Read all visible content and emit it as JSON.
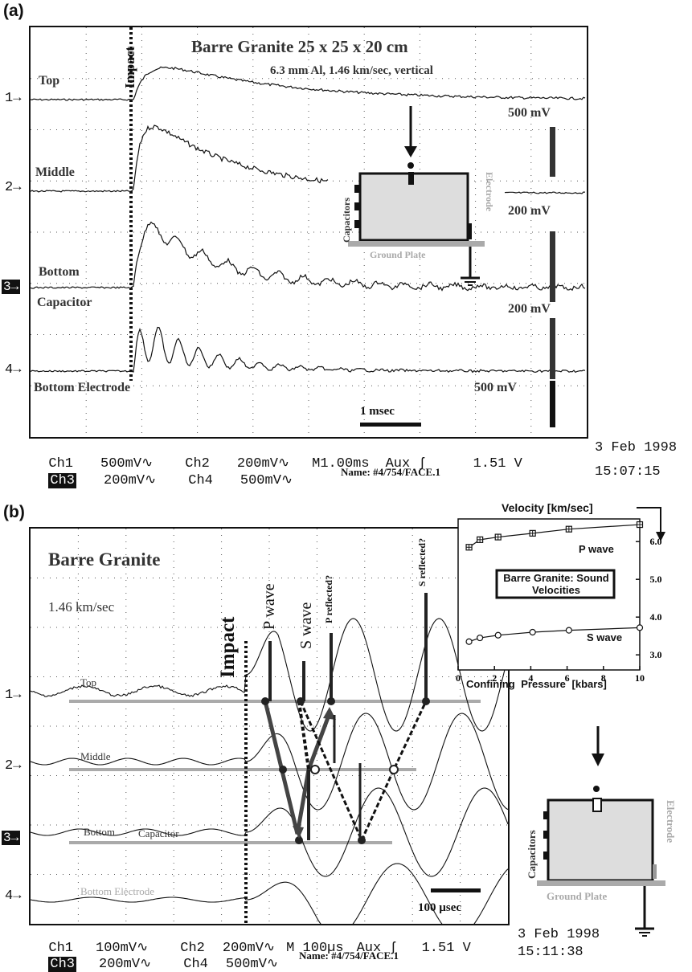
{
  "panel_a": {
    "label": "(a)",
    "title": "Barre Granite 25 x 25 x 20 cm",
    "subtitle": "6.3 mm Al, 1.46 km/sec, vertical",
    "impact_label": "Impact",
    "trace_labels": [
      "Top",
      "Middle",
      "Bottom",
      "Capacitor",
      "Bottom Electrode"
    ],
    "channel_markers": [
      "1",
      "2",
      "3",
      "4"
    ],
    "scales": [
      "500 mV",
      "200 mV",
      "200 mV",
      "500 mV"
    ],
    "time_bar_label": "1 msec",
    "inset": {
      "capacitors": "Capacitors",
      "electrode": "Electrode",
      "ground_plate": "Ground Plate"
    },
    "footer": {
      "row1": [
        "Ch1",
        "500mV∿",
        "Ch2",
        "200mV∿",
        "M1.00ms",
        "Aux ʃ",
        "1.51 V"
      ],
      "row2": [
        "Ch3",
        "200mV∿",
        "Ch4",
        "500mV∿"
      ],
      "name": "Name: #4/754/FACE.1",
      "date": "3 Feb 1998",
      "time": "15:07:15"
    }
  },
  "panel_b": {
    "label": "(b)",
    "title": "Barre Granite",
    "speed": "1.46 km/sec",
    "impact_label": "Impact",
    "trace_labels": [
      "Top",
      "Middle",
      "Bottom",
      "Capacitor",
      "Bottom Electrode"
    ],
    "channel_markers": [
      "1",
      "2",
      "3",
      "4"
    ],
    "wave_labels": [
      "P wave",
      "S wave",
      "P reflected?",
      "S reflected?"
    ],
    "time_bar_label": "100 µsec",
    "inset": {
      "capacitors": "Capacitors",
      "electrode": "Electrode",
      "ground_plate": "Ground Plate"
    },
    "footer": {
      "row1": [
        "Ch1",
        "100mV∿",
        "Ch2",
        "200mV∿",
        "M 100µs",
        "Aux ʃ",
        "1.51 V"
      ],
      "row2": [
        "Ch3",
        "200mV∿",
        "Ch4",
        "500mV∿"
      ],
      "name": "Name: #4/754/FACE.1",
      "date": "3 Feb 1998",
      "time": "15:11:38"
    }
  },
  "chart_data": [
    {
      "type": "line",
      "title": "Velocity [km/sec]",
      "box_label": "Barre Granite: Sound Velocities",
      "xlabel": "Confining Pressure [kbars]",
      "ylabel": "",
      "xlim": [
        0,
        10
      ],
      "ylim": [
        2.6,
        6.6
      ],
      "xticks": [
        0,
        2,
        4,
        6,
        8,
        10
      ],
      "yticks": [
        3.0,
        4.0,
        5.0,
        6.0
      ],
      "grid": false,
      "series": [
        {
          "name": "P wave",
          "x": [
            0.6,
            1.2,
            2.2,
            4.1,
            6.1,
            10.0
          ],
          "values": [
            5.85,
            6.05,
            6.12,
            6.22,
            6.33,
            6.45
          ]
        },
        {
          "name": "S wave",
          "x": [
            0.6,
            1.2,
            2.2,
            4.1,
            6.1,
            10.0
          ],
          "values": [
            3.35,
            3.45,
            3.52,
            3.6,
            3.65,
            3.72
          ]
        }
      ]
    }
  ]
}
